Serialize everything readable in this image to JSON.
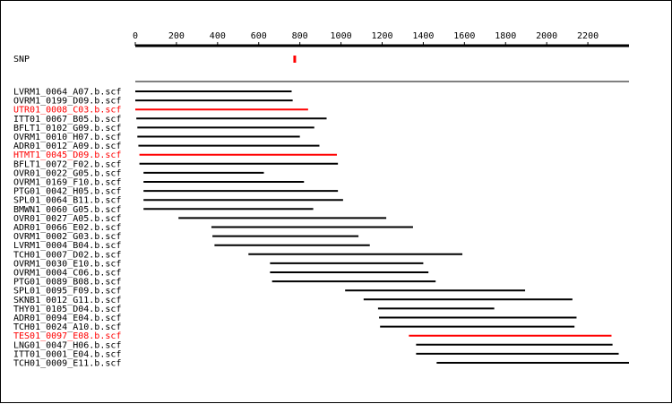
{
  "colors": {
    "normal": "#000000",
    "highlight": "#ff0000",
    "snp_marker": "#ff0000"
  },
  "axis": {
    "ticks": [
      0,
      200,
      400,
      600,
      800,
      1000,
      1200,
      1400,
      1600,
      1800,
      2000,
      2200
    ],
    "tick_labels": [
      "0",
      "200",
      "400",
      "600",
      "800",
      "1000",
      "1200",
      "1400",
      "1600",
      "1800",
      "2000",
      "2200"
    ],
    "max": 2400
  },
  "snp": {
    "label": "SNP",
    "position": 775
  },
  "reads": [
    {
      "name": "LVRM1_0064_A07.b.scf",
      "start": 0,
      "end": 760,
      "highlight": false
    },
    {
      "name": "OVRM1_0199_D09.b.scf",
      "start": 0,
      "end": 765,
      "highlight": false
    },
    {
      "name": "UTR01_0008_C03.b.scf",
      "start": 0,
      "end": 840,
      "highlight": true
    },
    {
      "name": "ITT01_0067_B05.b.scf",
      "start": 5,
      "end": 930,
      "highlight": false
    },
    {
      "name": "BFLT1_0102_G09.b.scf",
      "start": 10,
      "end": 870,
      "highlight": false
    },
    {
      "name": "OVRM1_0010_H07.b.scf",
      "start": 10,
      "end": 800,
      "highlight": false
    },
    {
      "name": "ADR01_0012_A09.b.scf",
      "start": 15,
      "end": 895,
      "highlight": false
    },
    {
      "name": "HTMT1_0045_D09.b.scf",
      "start": 20,
      "end": 980,
      "highlight": true
    },
    {
      "name": "BFLT1_0072_F02.b.scf",
      "start": 20,
      "end": 985,
      "highlight": false
    },
    {
      "name": "OVR01_0022_G05.b.scf",
      "start": 40,
      "end": 625,
      "highlight": false
    },
    {
      "name": "OVRM1_0169_F10.b.scf",
      "start": 40,
      "end": 820,
      "highlight": false
    },
    {
      "name": "PTG01_0042_H05.b.scf",
      "start": 40,
      "end": 985,
      "highlight": false
    },
    {
      "name": "SPL01_0064_B11.b.scf",
      "start": 40,
      "end": 1010,
      "highlight": false
    },
    {
      "name": "BMWN1_0060_G05.b.scf",
      "start": 40,
      "end": 865,
      "highlight": false
    },
    {
      "name": "OVR01_0027_A05.b.scf",
      "start": 210,
      "end": 1220,
      "highlight": false
    },
    {
      "name": "ADR01_0066_E02.b.scf",
      "start": 370,
      "end": 1350,
      "highlight": false
    },
    {
      "name": "OVRM1_0002_G03.b.scf",
      "start": 375,
      "end": 1085,
      "highlight": false
    },
    {
      "name": "LVRM1_0004_B04.b.scf",
      "start": 385,
      "end": 1140,
      "highlight": false
    },
    {
      "name": "TCH01_0007_D02.b.scf",
      "start": 550,
      "end": 1590,
      "highlight": false
    },
    {
      "name": "OVRM1_0030_E10.b.scf",
      "start": 655,
      "end": 1400,
      "highlight": false
    },
    {
      "name": "OVRM1_0004_C06.b.scf",
      "start": 655,
      "end": 1425,
      "highlight": false
    },
    {
      "name": "PTG01_0089_B08.b.scf",
      "start": 665,
      "end": 1460,
      "highlight": false
    },
    {
      "name": "SPL01_0095_F09.b.scf",
      "start": 1020,
      "end": 1895,
      "highlight": false
    },
    {
      "name": "SKNB1_0012_G11.b.scf",
      "start": 1110,
      "end": 2125,
      "highlight": false
    },
    {
      "name": "THY01_0105_D04.b.scf",
      "start": 1180,
      "end": 1745,
      "highlight": false
    },
    {
      "name": "ADR01_0094_E04.b.scf",
      "start": 1185,
      "end": 2145,
      "highlight": false
    },
    {
      "name": "TCH01_0024_A10.b.scf",
      "start": 1190,
      "end": 2135,
      "highlight": false
    },
    {
      "name": "TES01_0097_E08.b.scf",
      "start": 1330,
      "end": 2315,
      "highlight": true
    },
    {
      "name": "LNG01_0047_H06.b.scf",
      "start": 1365,
      "end": 2320,
      "highlight": false
    },
    {
      "name": "ITT01_0001_E04.b.scf",
      "start": 1365,
      "end": 2350,
      "highlight": false
    },
    {
      "name": "TCH01_0009_E11.b.scf",
      "start": 1465,
      "end": 2400,
      "highlight": false
    }
  ]
}
